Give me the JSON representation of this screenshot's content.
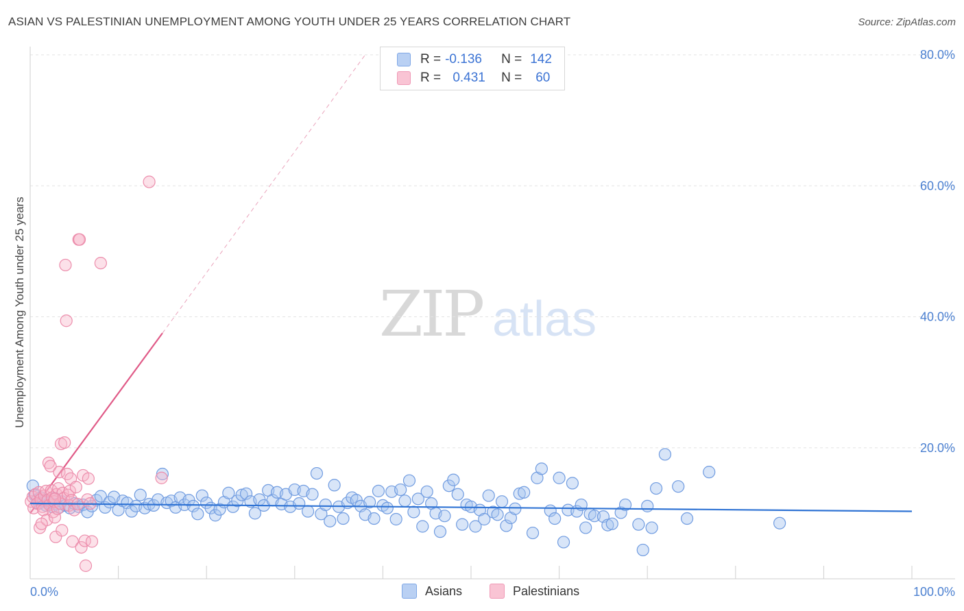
{
  "title": "ASIAN VS PALESTINIAN UNEMPLOYMENT AMONG YOUTH UNDER 25 YEARS CORRELATION CHART",
  "source": "Source: ZipAtlas.com",
  "watermark": {
    "zip": "ZIP",
    "atlas": "atlas"
  },
  "legend": {
    "asians": {
      "r_label": "R =",
      "r_value": "-0.136",
      "n_label": "N =",
      "n_value": "142"
    },
    "palestinians": {
      "r_label": "R =",
      "r_value": "0.431",
      "n_label": "N =",
      "n_value": "60"
    }
  },
  "bottom_legend": {
    "asians": "Asians",
    "palestinians": "Palestinians"
  },
  "colors": {
    "asians_fill": "#a9c6f0",
    "asians_stroke": "#6f9be0",
    "asians_line": "#2f73d4",
    "pal_fill": "#f7b5c9",
    "pal_stroke": "#ec8cab",
    "pal_line": "#e05a87"
  },
  "chart_data": {
    "type": "scatter",
    "title": "ASIAN VS PALESTINIAN UNEMPLOYMENT AMONG YOUTH UNDER 25 YEARS CORRELATION CHART",
    "xlabel": "",
    "ylabel": "Unemployment Among Youth under 25 years",
    "xlim": [
      0,
      100
    ],
    "ylim": [
      0,
      80
    ],
    "x_ticks": [
      "0.0%",
      "100.0%"
    ],
    "y_ticks": [
      "20.0%",
      "40.0%",
      "60.0%",
      "80.0%"
    ],
    "grid": true,
    "legend_position": "top-center",
    "series": [
      {
        "name": "Asians",
        "points": [
          [
            0.3,
            14.2
          ],
          [
            0.5,
            12.8
          ],
          [
            0.8,
            12.1
          ],
          [
            1.0,
            11.5
          ],
          [
            1.2,
            12.4
          ],
          [
            1.5,
            11.9
          ],
          [
            1.8,
            11.2
          ],
          [
            2.0,
            12.0
          ],
          [
            2.2,
            11.6
          ],
          [
            2.5,
            11.0
          ],
          [
            2.8,
            12.3
          ],
          [
            3.0,
            11.4
          ],
          [
            3.3,
            10.9
          ],
          [
            3.6,
            11.8
          ],
          [
            4.0,
            11.2
          ],
          [
            4.5,
            10.8
          ],
          [
            5.0,
            11.5
          ],
          [
            5.5,
            11.0
          ],
          [
            6.0,
            11.3
          ],
          [
            6.5,
            10.2
          ],
          [
            7.0,
            11.1
          ],
          [
            7.5,
            12.0
          ],
          [
            8.0,
            12.6
          ],
          [
            8.5,
            10.9
          ],
          [
            9.0,
            11.7
          ],
          [
            9.5,
            12.5
          ],
          [
            10.0,
            10.5
          ],
          [
            10.5,
            11.9
          ],
          [
            11.0,
            11.6
          ],
          [
            11.5,
            10.3
          ],
          [
            12.0,
            11.1
          ],
          [
            12.5,
            12.8
          ],
          [
            13.0,
            10.8
          ],
          [
            13.5,
            11.4
          ],
          [
            14.0,
            11.2
          ],
          [
            14.5,
            12.1
          ],
          [
            15.0,
            16.0
          ],
          [
            15.5,
            11.6
          ],
          [
            16.0,
            11.9
          ],
          [
            16.5,
            10.9
          ],
          [
            17.0,
            12.4
          ],
          [
            17.5,
            11.3
          ],
          [
            18.0,
            12.0
          ],
          [
            18.5,
            11.1
          ],
          [
            19.0,
            9.9
          ],
          [
            19.5,
            12.7
          ],
          [
            20.0,
            11.6
          ],
          [
            20.5,
            10.8
          ],
          [
            21.0,
            9.7
          ],
          [
            21.5,
            10.6
          ],
          [
            22.0,
            11.7
          ],
          [
            22.5,
            13.1
          ],
          [
            23.0,
            11.0
          ],
          [
            23.5,
            11.9
          ],
          [
            24.0,
            12.8
          ],
          [
            24.5,
            13.0
          ],
          [
            25.0,
            11.8
          ],
          [
            25.5,
            10.0
          ],
          [
            26.0,
            12.1
          ],
          [
            26.5,
            11.2
          ],
          [
            27.0,
            13.5
          ],
          [
            27.5,
            12.0
          ],
          [
            28.0,
            13.2
          ],
          [
            28.5,
            11.4
          ],
          [
            29.0,
            12.9
          ],
          [
            29.5,
            11.0
          ],
          [
            30.0,
            13.6
          ],
          [
            30.5,
            11.5
          ],
          [
            31.0,
            13.4
          ],
          [
            31.5,
            10.3
          ],
          [
            32.0,
            12.9
          ],
          [
            32.5,
            16.1
          ],
          [
            33.0,
            9.9
          ],
          [
            33.5,
            11.3
          ],
          [
            34.0,
            8.8
          ],
          [
            34.5,
            14.3
          ],
          [
            35.0,
            11.0
          ],
          [
            35.5,
            9.2
          ],
          [
            36.0,
            11.6
          ],
          [
            36.5,
            12.4
          ],
          [
            37.0,
            12.0
          ],
          [
            37.5,
            11.1
          ],
          [
            38.0,
            9.8
          ],
          [
            38.5,
            11.7
          ],
          [
            39.0,
            9.2
          ],
          [
            39.5,
            13.4
          ],
          [
            40.0,
            11.2
          ],
          [
            40.5,
            10.8
          ],
          [
            41.0,
            13.3
          ],
          [
            41.5,
            9.1
          ],
          [
            42.0,
            13.6
          ],
          [
            42.5,
            11.9
          ],
          [
            43.0,
            15.0
          ],
          [
            43.5,
            10.2
          ],
          [
            44.0,
            12.2
          ],
          [
            44.5,
            8.0
          ],
          [
            45.0,
            13.3
          ],
          [
            45.5,
            11.5
          ],
          [
            46.0,
            10.0
          ],
          [
            46.5,
            7.2
          ],
          [
            47.0,
            9.6
          ],
          [
            47.5,
            14.2
          ],
          [
            48.0,
            15.1
          ],
          [
            48.5,
            12.9
          ],
          [
            49.0,
            8.3
          ],
          [
            49.5,
            11.3
          ],
          [
            50.0,
            11.0
          ],
          [
            50.5,
            8.0
          ],
          [
            51.0,
            10.5
          ],
          [
            51.5,
            9.1
          ],
          [
            52.0,
            12.7
          ],
          [
            52.5,
            10.2
          ],
          [
            53.0,
            9.8
          ],
          [
            53.5,
            11.8
          ],
          [
            54.0,
            8.1
          ],
          [
            54.5,
            9.3
          ],
          [
            55.0,
            10.7
          ],
          [
            55.5,
            13.0
          ],
          [
            56.0,
            13.2
          ],
          [
            57.0,
            7.0
          ],
          [
            57.5,
            15.4
          ],
          [
            58.0,
            16.8
          ],
          [
            59.0,
            10.4
          ],
          [
            59.5,
            9.2
          ],
          [
            60.0,
            15.4
          ],
          [
            60.5,
            5.6
          ],
          [
            61.0,
            10.5
          ],
          [
            61.5,
            14.6
          ],
          [
            62.0,
            10.3
          ],
          [
            62.5,
            11.3
          ],
          [
            63.0,
            7.8
          ],
          [
            63.5,
            9.9
          ],
          [
            64.0,
            9.6
          ],
          [
            65.0,
            9.5
          ],
          [
            65.5,
            8.2
          ],
          [
            66.0,
            8.4
          ],
          [
            67.0,
            10.1
          ],
          [
            67.5,
            11.3
          ],
          [
            69.0,
            8.3
          ],
          [
            69.5,
            4.4
          ],
          [
            70.0,
            11.1
          ],
          [
            70.5,
            7.8
          ],
          [
            71.0,
            13.8
          ],
          [
            72.0,
            19.0
          ],
          [
            73.5,
            14.1
          ],
          [
            74.5,
            9.2
          ],
          [
            77.0,
            16.3
          ],
          [
            85.0,
            8.5
          ]
        ]
      },
      {
        "name": "Palestinians",
        "points": [
          [
            0.1,
            11.8
          ],
          [
            0.3,
            12.5
          ],
          [
            0.4,
            10.8
          ],
          [
            0.6,
            12.9
          ],
          [
            0.8,
            11.5
          ],
          [
            1.0,
            13.2
          ],
          [
            1.1,
            7.8
          ],
          [
            1.2,
            12.1
          ],
          [
            1.4,
            11.0
          ],
          [
            1.5,
            10.5
          ],
          [
            1.6,
            12.7
          ],
          [
            1.8,
            13.4
          ],
          [
            1.9,
            9.0
          ],
          [
            2.0,
            12.0
          ],
          [
            2.1,
            17.7
          ],
          [
            2.2,
            11.3
          ],
          [
            2.3,
            17.2
          ],
          [
            2.4,
            13.5
          ],
          [
            2.5,
            12.4
          ],
          [
            2.6,
            10.2
          ],
          [
            2.7,
            11.8
          ],
          [
            2.8,
            9.4
          ],
          [
            2.9,
            6.4
          ],
          [
            3.0,
            12.9
          ],
          [
            3.1,
            10.7
          ],
          [
            3.2,
            13.8
          ],
          [
            3.3,
            16.3
          ],
          [
            3.4,
            11.5
          ],
          [
            3.5,
            20.6
          ],
          [
            3.6,
            7.4
          ],
          [
            3.7,
            13.1
          ],
          [
            3.8,
            12.3
          ],
          [
            3.9,
            20.8
          ],
          [
            4.0,
            47.9
          ],
          [
            4.1,
            39.4
          ],
          [
            4.2,
            16.0
          ],
          [
            4.3,
            12.8
          ],
          [
            4.4,
            11.2
          ],
          [
            4.5,
            13.4
          ],
          [
            4.6,
            15.3
          ],
          [
            4.7,
            12.0
          ],
          [
            4.8,
            5.7
          ],
          [
            5.0,
            10.5
          ],
          [
            5.2,
            14.0
          ],
          [
            5.4,
            11.4
          ],
          [
            5.5,
            51.8
          ],
          [
            5.6,
            51.8
          ],
          [
            5.8,
            4.8
          ],
          [
            6.0,
            15.8
          ],
          [
            6.2,
            5.8
          ],
          [
            6.3,
            2.0
          ],
          [
            6.5,
            12.1
          ],
          [
            6.6,
            15.3
          ],
          [
            6.8,
            11.5
          ],
          [
            7.0,
            5.7
          ],
          [
            8.0,
            48.2
          ],
          [
            13.5,
            60.6
          ],
          [
            14.9,
            15.4
          ],
          [
            1.3,
            8.4
          ],
          [
            2.8,
            12.2
          ]
        ]
      }
    ],
    "trendlines": [
      {
        "series": "Asians",
        "x": [
          0,
          100
        ],
        "y": [
          11.5,
          10.3
        ]
      },
      {
        "series": "Palestinians",
        "x": [
          0,
          15
        ],
        "y": [
          10.0,
          37.5
        ],
        "extended_to": [
          38,
          80
        ]
      }
    ]
  }
}
